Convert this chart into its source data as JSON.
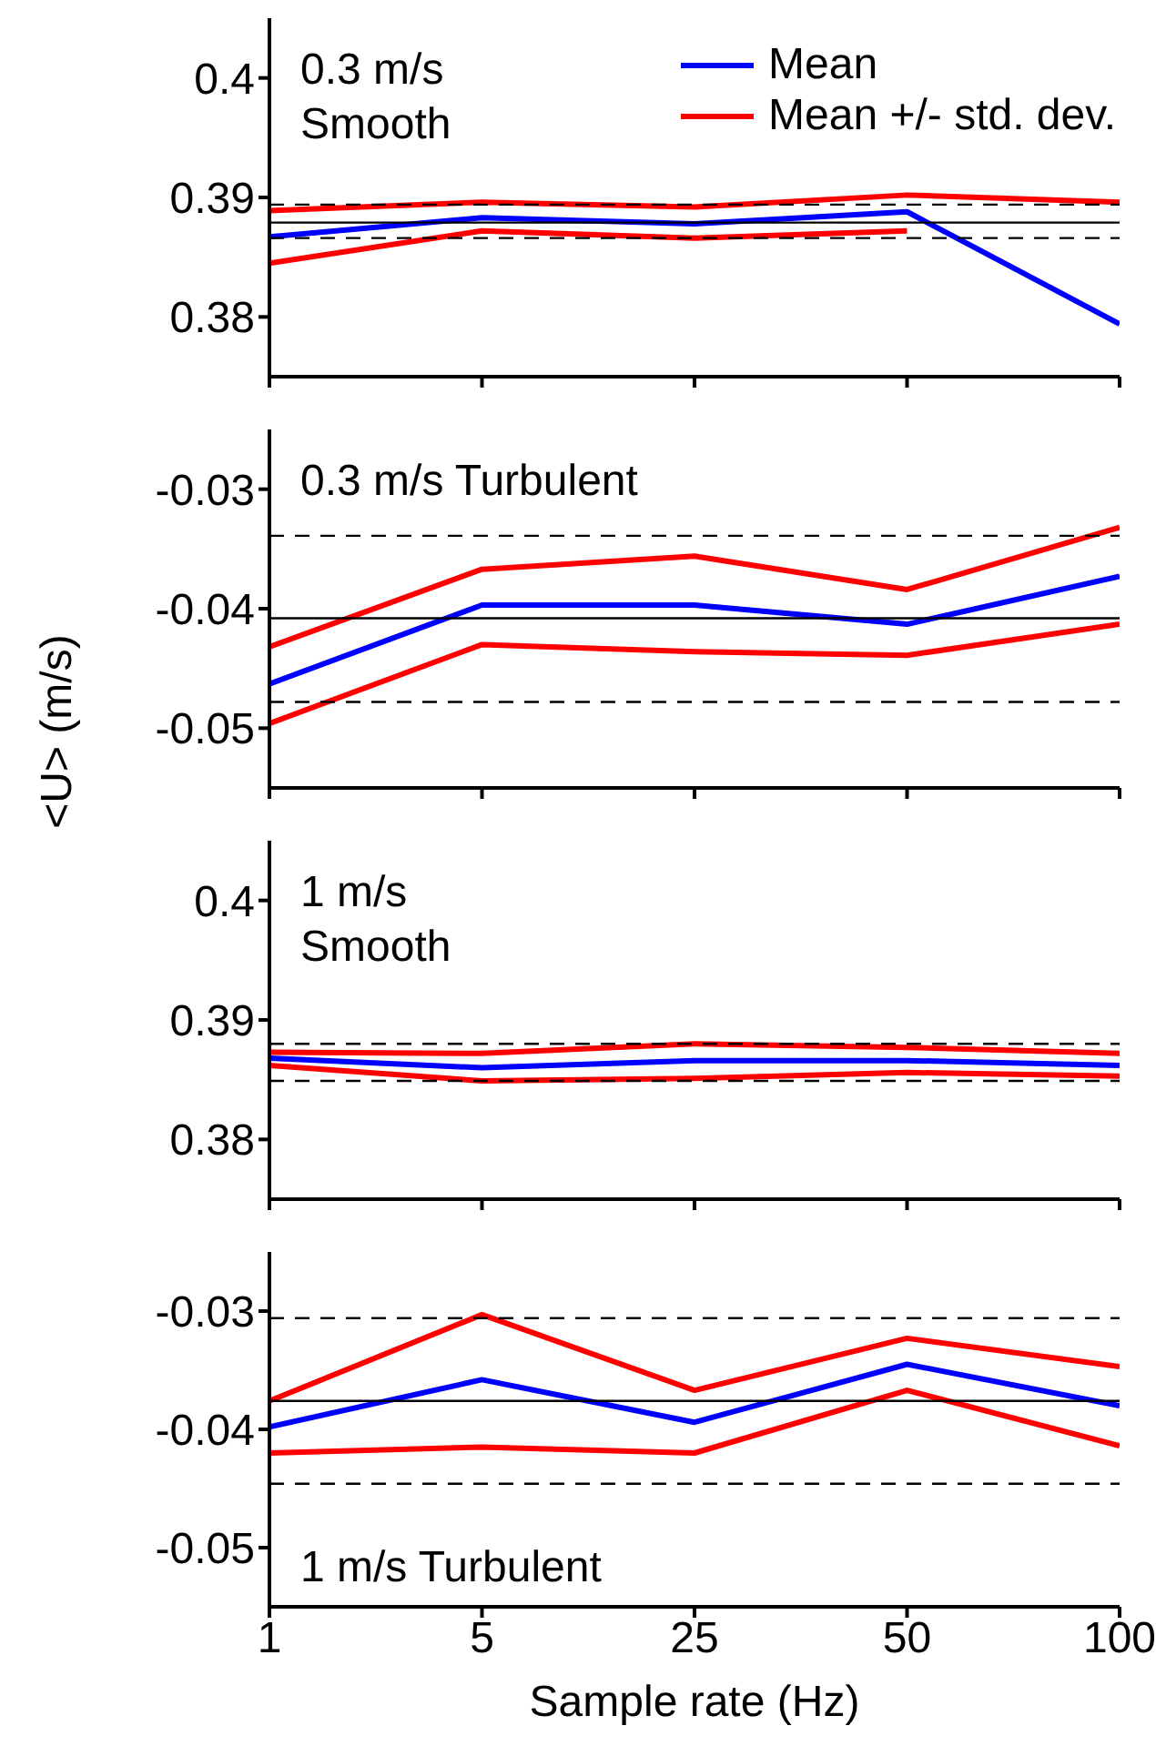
{
  "chart_data": [
    {
      "type": "line",
      "annotations": [
        "0.3 m/s",
        "Smooth"
      ],
      "categories": [
        "1",
        "5",
        "25",
        "50",
        "100"
      ],
      "ylim": [
        0.375,
        0.405
      ],
      "yticks": [
        0.38,
        0.39,
        0.4
      ],
      "tick_labels": "y",
      "legend": "top right",
      "grid": false,
      "line_style": "solid",
      "marker": "none",
      "series": [
        {
          "name": "Mean",
          "color": "#0000ff",
          "values": [
            0.3867,
            0.3883,
            0.3878,
            0.3888,
            0.3794
          ]
        },
        {
          "name": "Mean +/- std. dev.",
          "color": "#ff0000",
          "values": [
            0.3889,
            0.3896,
            0.3892,
            0.3902,
            0.3896
          ]
        },
        {
          "color": "#ff0000",
          "values": [
            0.3845,
            0.3872,
            0.3866,
            0.3872,
            null
          ]
        }
      ],
      "ref_lines": [
        {
          "axis": "y",
          "value": 0.3879,
          "color": "#000000",
          "line_style": "solid"
        },
        {
          "axis": "y",
          "value": 0.3894,
          "color": "#000000",
          "line_style": "dashed"
        },
        {
          "axis": "y",
          "value": 0.3866,
          "color": "#000000",
          "line_style": "dashed"
        }
      ]
    },
    {
      "type": "line",
      "ylabel": "<U> (m/s)",
      "annotations": [
        "0.3 m/s Turbulent"
      ],
      "categories": [
        "1",
        "5",
        "25",
        "50",
        "100"
      ],
      "ylim": [
        -0.055,
        -0.025
      ],
      "yticks": [
        -0.05,
        -0.04,
        -0.03
      ],
      "tick_labels": "y",
      "grid": false,
      "line_style": "solid",
      "marker": "none",
      "series": [
        {
          "color": "#0000ff",
          "values": [
            -0.0463,
            -0.0397,
            -0.0397,
            -0.0413,
            -0.0373
          ]
        },
        {
          "color": "#ff0000",
          "values": [
            -0.0432,
            -0.0367,
            -0.0356,
            -0.0384,
            -0.0332
          ]
        },
        {
          "color": "#ff0000",
          "values": [
            -0.0496,
            -0.043,
            -0.0436,
            -0.0439,
            -0.0413
          ]
        }
      ],
      "ref_lines": [
        {
          "axis": "y",
          "value": -0.0408,
          "color": "#000000",
          "line_style": "solid"
        },
        {
          "axis": "y",
          "value": -0.0339,
          "color": "#000000",
          "line_style": "dashed"
        },
        {
          "axis": "y",
          "value": -0.0478,
          "color": "#000000",
          "line_style": "dashed"
        }
      ]
    },
    {
      "type": "line",
      "annotations": [
        "1 m/s",
        "Smooth"
      ],
      "categories": [
        "1",
        "5",
        "25",
        "50",
        "100"
      ],
      "ylim": [
        0.375,
        0.405
      ],
      "yticks": [
        0.38,
        0.39,
        0.4
      ],
      "tick_labels": "y",
      "grid": false,
      "line_style": "solid",
      "marker": "none",
      "series": [
        {
          "color": "#0000ff",
          "values": [
            0.3868,
            0.386,
            0.3866,
            0.3866,
            0.3862
          ]
        },
        {
          "color": "#ff0000",
          "values": [
            0.3873,
            0.3872,
            0.388,
            0.3877,
            0.3872
          ]
        },
        {
          "color": "#ff0000",
          "values": [
            0.3862,
            0.3849,
            0.3851,
            0.3856,
            0.3853
          ]
        }
      ],
      "ref_lines": [
        {
          "axis": "y",
          "value": 0.388,
          "color": "#000000",
          "line_style": "dashed"
        },
        {
          "axis": "y",
          "value": 0.3849,
          "color": "#000000",
          "line_style": "dashed"
        }
      ]
    },
    {
      "type": "line",
      "xlabel": "Sample rate (Hz)",
      "annotations": [
        "1 m/s Turbulent"
      ],
      "categories": [
        "1",
        "5",
        "25",
        "50",
        "100"
      ],
      "ylim": [
        -0.055,
        -0.025
      ],
      "yticks": [
        -0.05,
        -0.04,
        -0.03
      ],
      "grid": false,
      "line_style": "solid",
      "marker": "none",
      "series": [
        {
          "color": "#0000ff",
          "values": [
            -0.0398,
            -0.0358,
            -0.0394,
            -0.0345,
            -0.038
          ]
        },
        {
          "color": "#ff0000",
          "values": [
            -0.0376,
            -0.0303,
            -0.0367,
            -0.0323,
            -0.0347
          ]
        },
        {
          "color": "#ff0000",
          "values": [
            -0.042,
            -0.0415,
            -0.042,
            -0.0367,
            -0.0414
          ]
        }
      ],
      "ref_lines": [
        {
          "axis": "y",
          "value": -0.0376,
          "color": "#000000",
          "line_style": "solid"
        },
        {
          "axis": "y",
          "value": -0.0306,
          "color": "#000000",
          "line_style": "dashed"
        },
        {
          "axis": "y",
          "value": -0.0446,
          "color": "#000000",
          "line_style": "dashed"
        }
      ]
    }
  ]
}
